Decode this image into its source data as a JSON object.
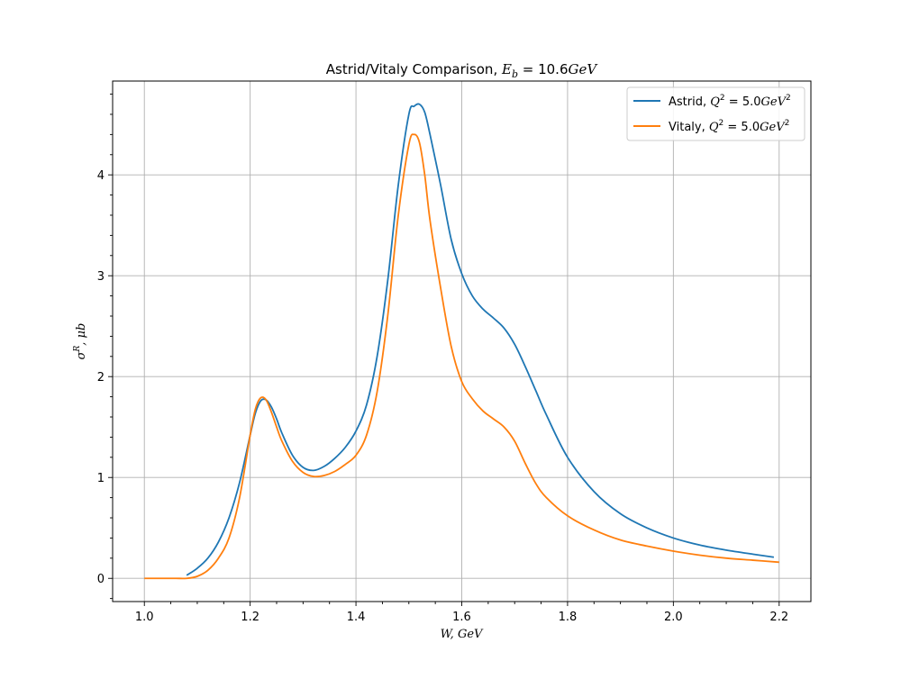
{
  "chart_data": {
    "type": "line",
    "title": {
      "text": "Astrid/Vitaly Comparison, ",
      "math_var": "E",
      "math_sub": "b",
      "math_eq": " = 10.6",
      "math_unit": "GeV"
    },
    "xlabel": {
      "var": "W",
      "sep": ", ",
      "unit": "GeV"
    },
    "ylabel": {
      "var": "σ",
      "sup": "R",
      "sep": ", ",
      "unit": "μb"
    },
    "xlim": [
      0.94,
      2.26
    ],
    "ylim": [
      -0.23,
      4.93
    ],
    "xticks": [
      1.0,
      1.2,
      1.4,
      1.6,
      1.8,
      2.0,
      2.2
    ],
    "xtick_labels": [
      "1.0",
      "1.2",
      "1.4",
      "1.6",
      "1.8",
      "2.0",
      "2.2"
    ],
    "yticks": [
      0,
      1,
      2,
      3,
      4
    ],
    "ytick_labels": [
      "0",
      "1",
      "2",
      "3",
      "4"
    ],
    "grid": true,
    "legend_position": "top-right",
    "series": [
      {
        "name": "Astrid",
        "q2_var": "Q",
        "q2_sup": "2",
        "q2_eq": " = 5.0",
        "q2_unit": "GeV",
        "q2_unit_sup": "2",
        "color": "#1f77b4",
        "x": [
          1.08,
          1.1,
          1.12,
          1.14,
          1.16,
          1.18,
          1.2,
          1.21,
          1.22,
          1.23,
          1.24,
          1.25,
          1.26,
          1.28,
          1.3,
          1.32,
          1.34,
          1.36,
          1.38,
          1.4,
          1.42,
          1.44,
          1.46,
          1.48,
          1.5,
          1.51,
          1.52,
          1.53,
          1.54,
          1.56,
          1.58,
          1.6,
          1.62,
          1.64,
          1.66,
          1.68,
          1.7,
          1.72,
          1.74,
          1.76,
          1.8,
          1.85,
          1.9,
          1.95,
          2.0,
          2.05,
          2.1,
          2.15,
          2.19
        ],
        "y": [
          0.03,
          0.1,
          0.2,
          0.36,
          0.6,
          0.95,
          1.42,
          1.64,
          1.76,
          1.77,
          1.7,
          1.58,
          1.44,
          1.22,
          1.1,
          1.07,
          1.11,
          1.19,
          1.3,
          1.46,
          1.72,
          2.2,
          2.95,
          3.9,
          4.6,
          4.68,
          4.7,
          4.62,
          4.4,
          3.9,
          3.36,
          3.02,
          2.8,
          2.67,
          2.58,
          2.48,
          2.32,
          2.1,
          1.86,
          1.62,
          1.2,
          0.86,
          0.64,
          0.5,
          0.4,
          0.33,
          0.28,
          0.24,
          0.21
        ]
      },
      {
        "name": "Vitaly",
        "q2_var": "Q",
        "q2_sup": "2",
        "q2_eq": " = 5.0",
        "q2_unit": "GeV",
        "q2_unit_sup": "2",
        "color": "#ff7f0e",
        "x": [
          1.0,
          1.02,
          1.04,
          1.06,
          1.08,
          1.1,
          1.12,
          1.14,
          1.16,
          1.18,
          1.2,
          1.21,
          1.22,
          1.23,
          1.24,
          1.25,
          1.26,
          1.28,
          1.3,
          1.32,
          1.34,
          1.36,
          1.38,
          1.4,
          1.42,
          1.44,
          1.46,
          1.48,
          1.5,
          1.51,
          1.52,
          1.53,
          1.54,
          1.56,
          1.58,
          1.6,
          1.62,
          1.64,
          1.66,
          1.68,
          1.7,
          1.72,
          1.74,
          1.76,
          1.8,
          1.85,
          1.9,
          1.95,
          2.0,
          2.05,
          2.1,
          2.15,
          2.2
        ],
        "y": [
          0.0,
          0.0,
          0.0,
          0.0,
          0.0,
          0.02,
          0.08,
          0.2,
          0.4,
          0.8,
          1.42,
          1.68,
          1.79,
          1.77,
          1.65,
          1.5,
          1.36,
          1.16,
          1.05,
          1.01,
          1.02,
          1.06,
          1.13,
          1.22,
          1.42,
          1.85,
          2.6,
          3.6,
          4.3,
          4.4,
          4.32,
          4.0,
          3.55,
          2.88,
          2.3,
          1.95,
          1.78,
          1.66,
          1.58,
          1.5,
          1.36,
          1.14,
          0.94,
          0.8,
          0.62,
          0.48,
          0.38,
          0.32,
          0.27,
          0.23,
          0.2,
          0.18,
          0.16
        ]
      }
    ]
  }
}
